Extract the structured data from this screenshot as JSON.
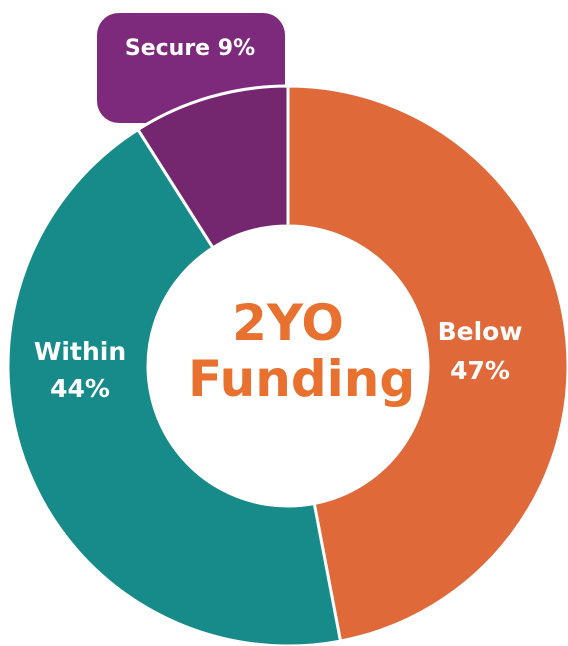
{
  "chart_data": {
    "type": "donut",
    "title": "2YO Funding",
    "categories": [
      "Below",
      "Within",
      "Secure"
    ],
    "values": [
      47,
      44,
      9
    ],
    "value_labels": [
      "47%",
      "44%",
      "9%"
    ],
    "colors": [
      "#e0693a",
      "#178b89",
      "#74276f"
    ]
  }
}
